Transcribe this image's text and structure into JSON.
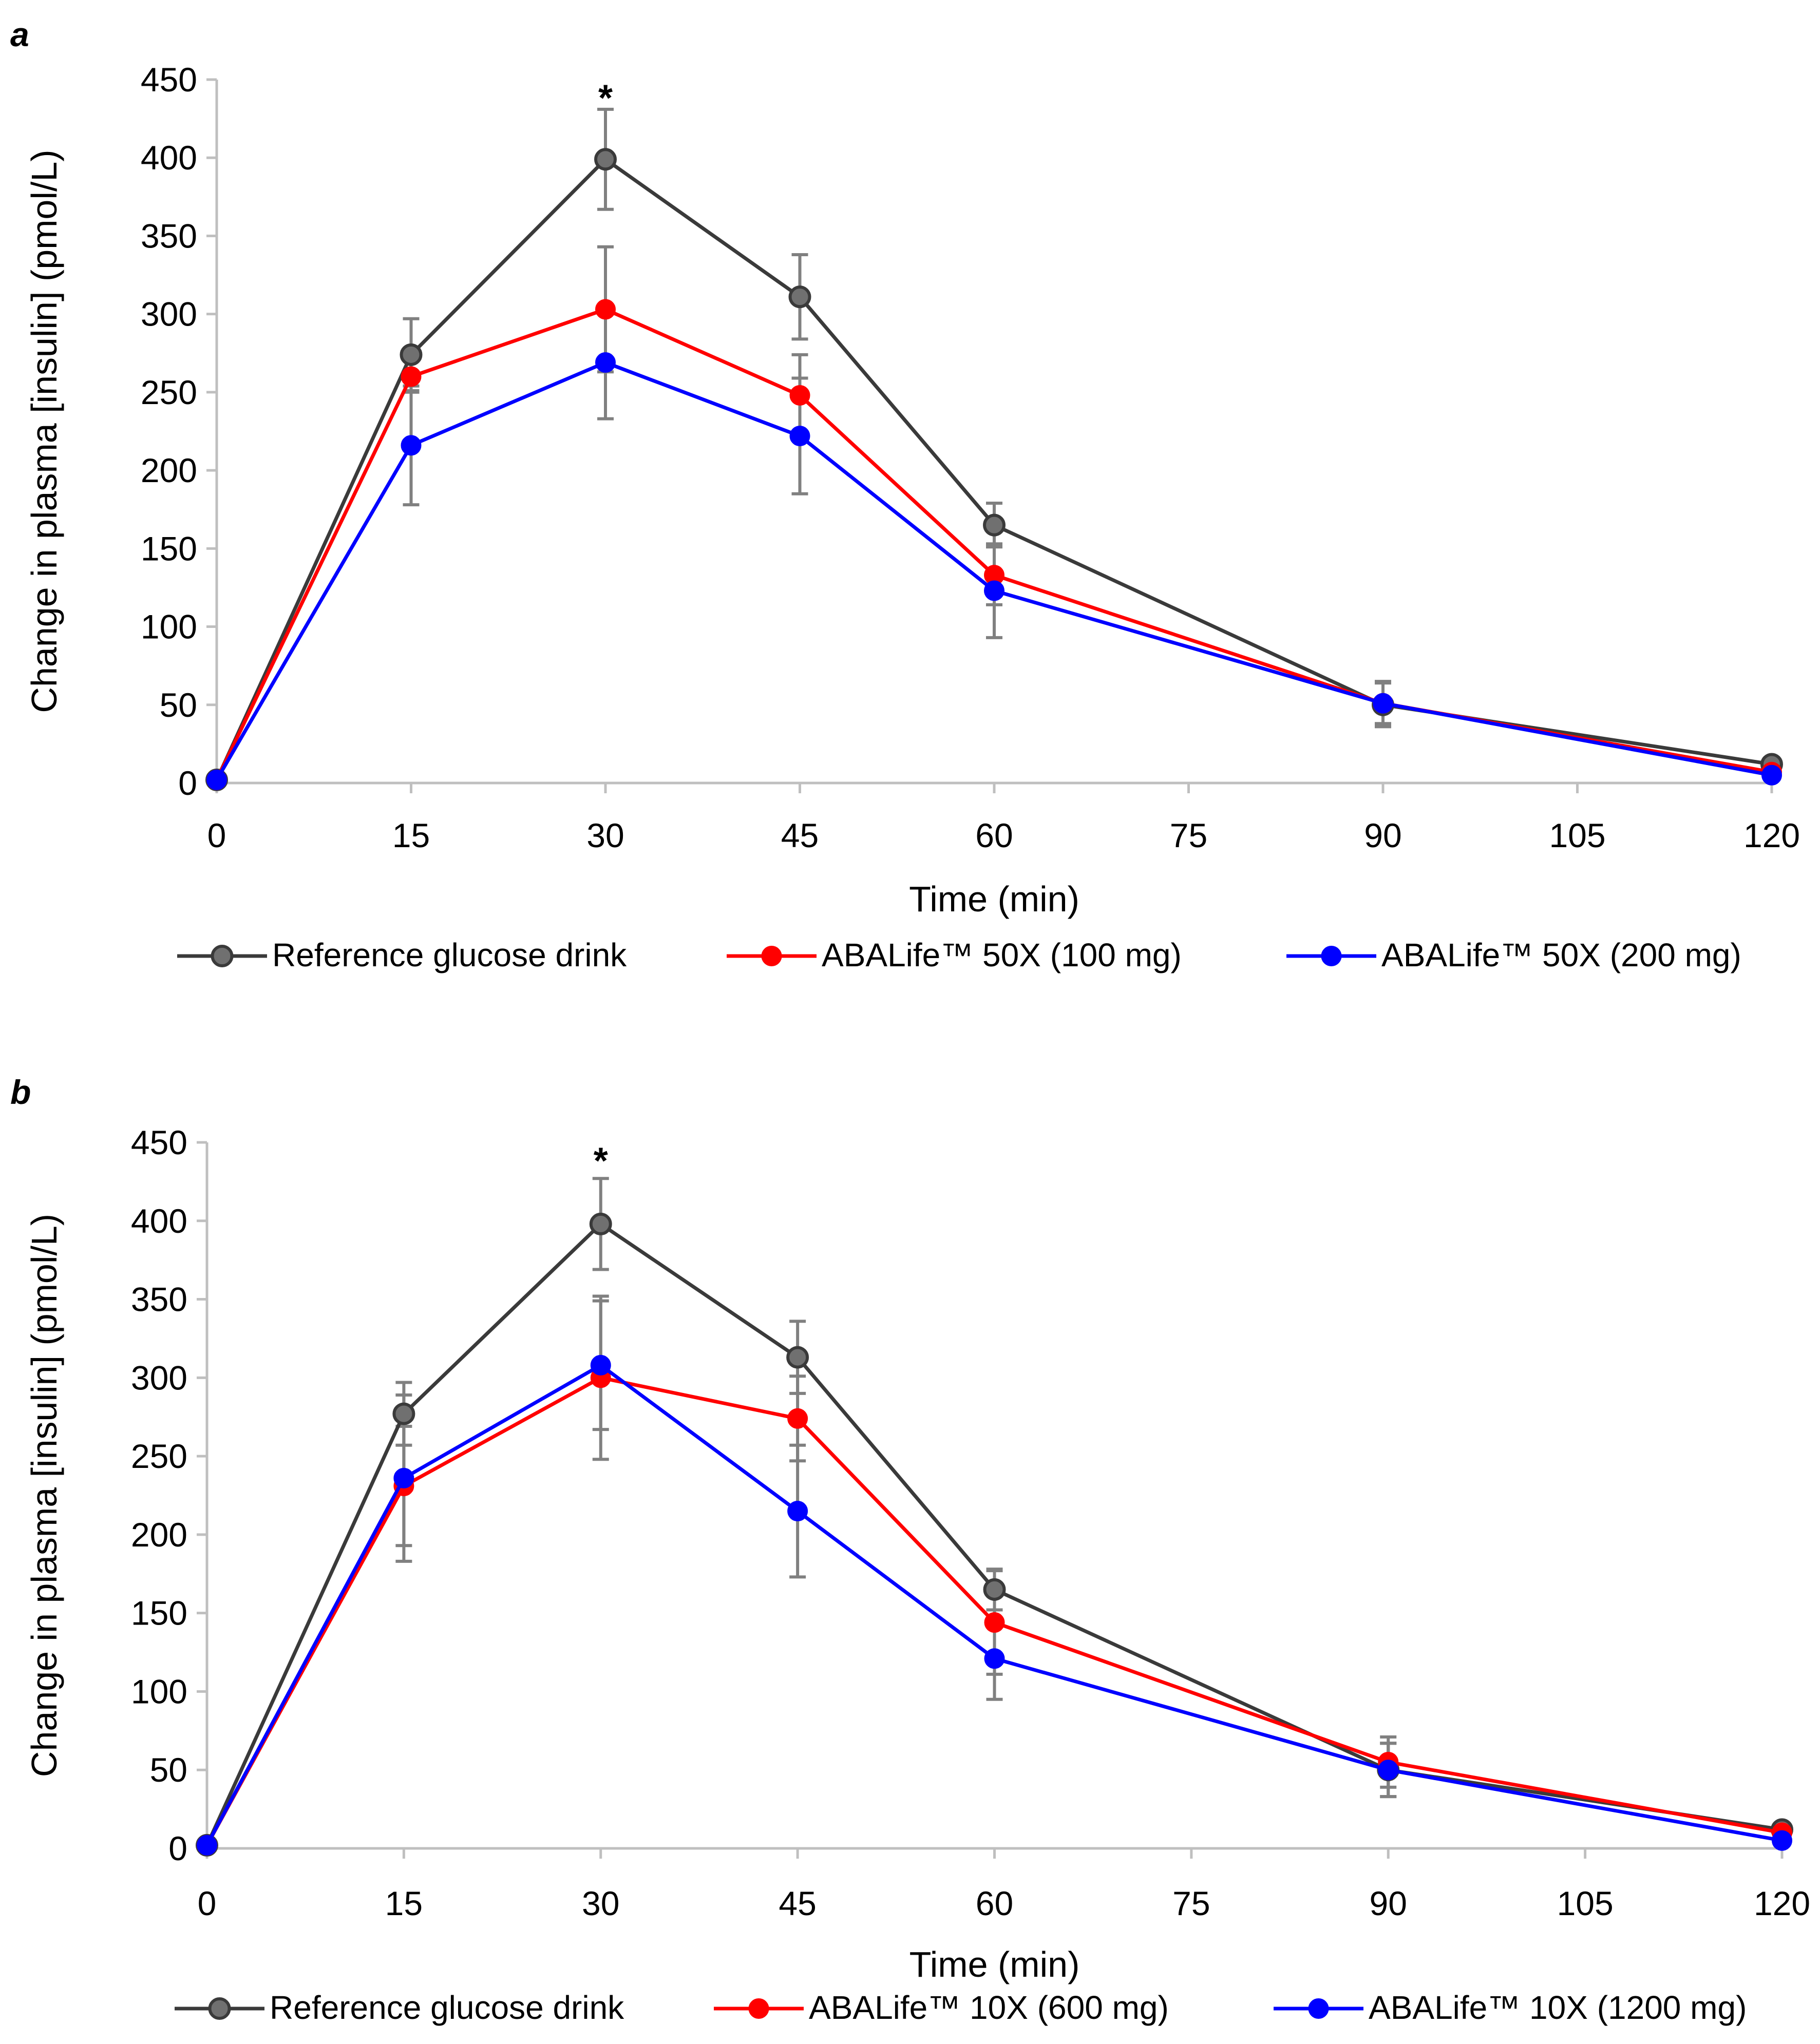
{
  "colors": {
    "reference": "#3a3a3a",
    "reference_marker": "#707070",
    "low_dose": "#ff0000",
    "high_dose": "#0000ff",
    "error_bar": "#808080",
    "axis": "#bfbfbf"
  },
  "chart_data": [
    {
      "panel_label": "a",
      "type": "line",
      "xlabel": "Time (min)",
      "ylabel": "Change in plasma [insulin] (pmol/L)",
      "xlim": [
        0,
        120
      ],
      "ylim": [
        0,
        450
      ],
      "x_ticks": [
        "0",
        "15",
        "30",
        "45",
        "60",
        "75",
        "90",
        "105",
        "120"
      ],
      "y_ticks": [
        "0",
        "50",
        "100",
        "150",
        "200",
        "250",
        "300",
        "350",
        "400",
        "450"
      ],
      "x": [
        0,
        15,
        30,
        45,
        60,
        90,
        120
      ],
      "annotations": [
        {
          "text": "*",
          "x": 30,
          "y": 440
        }
      ],
      "legend_position": "bottom",
      "series": [
        {
          "name": "Reference glucose drink",
          "color_key": "reference",
          "values": [
            2,
            274,
            399,
            311,
            165,
            50,
            12
          ],
          "error": [
            0,
            23,
            32,
            27,
            14,
            14,
            0
          ]
        },
        {
          "name": "ABALife™ 50X (100 mg)",
          "color_key": "low_dose",
          "values": [
            2,
            260,
            303,
            248,
            133,
            51,
            7
          ],
          "error": [
            0,
            10,
            40,
            26,
            19,
            13,
            0
          ]
        },
        {
          "name": "ABALife™ 50X (200 mg)",
          "color_key": "high_dose",
          "values": [
            2,
            216,
            269,
            222,
            123,
            51,
            5
          ],
          "error": [
            0,
            38,
            36,
            37,
            30,
            14,
            0
          ]
        }
      ]
    },
    {
      "panel_label": "b",
      "type": "line",
      "xlabel": "Time (min)",
      "ylabel": "Change in plasma [insulin] (pmol/L)",
      "xlim": [
        0,
        120
      ],
      "ylim": [
        0,
        450
      ],
      "x_ticks": [
        "0",
        "15",
        "30",
        "45",
        "60",
        "75",
        "90",
        "105",
        "120"
      ],
      "y_ticks": [
        "0",
        "50",
        "100",
        "150",
        "200",
        "250",
        "300",
        "350",
        "400",
        "450"
      ],
      "x": [
        0,
        15,
        30,
        45,
        60,
        90,
        120
      ],
      "annotations": [
        {
          "text": "*",
          "x": 30,
          "y": 440
        }
      ],
      "legend_position": "bottom",
      "series": [
        {
          "name": "Reference glucose drink",
          "color_key": "reference",
          "values": [
            2,
            277,
            398,
            313,
            165,
            50,
            12
          ],
          "error": [
            0,
            20,
            29,
            23,
            13,
            17,
            0
          ]
        },
        {
          "name": "ABALife™ 10X (600 mg)",
          "color_key": "low_dose",
          "values": [
            2,
            231,
            300,
            274,
            144,
            55,
            10
          ],
          "error": [
            0,
            38,
            52,
            27,
            33,
            16,
            0
          ]
        },
        {
          "name": "ABALife™ 10X (1200 mg)",
          "color_key": "high_dose",
          "values": [
            2,
            236,
            308,
            215,
            121,
            50,
            5
          ],
          "error": [
            0,
            53,
            41,
            42,
            26,
            17,
            0
          ]
        }
      ]
    }
  ]
}
